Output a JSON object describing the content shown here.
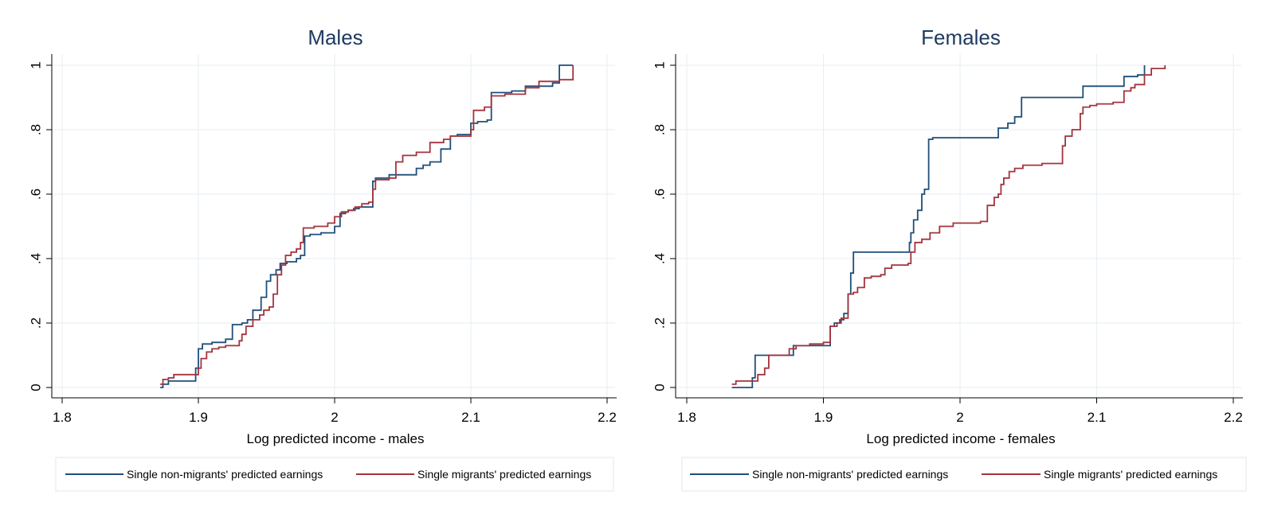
{
  "colors": {
    "non_migrant_line": "#1f4e79",
    "migrant_line": "#a3333d",
    "grid": "#e7eef0",
    "axis": "#000000",
    "title": "#1f3a60"
  },
  "chart_data": [
    {
      "type": "line",
      "title": "Males",
      "xlabel": "Log predicted income - males",
      "ylabel": "",
      "xlim": [
        1.8,
        2.2
      ],
      "ylim": [
        0,
        1
      ],
      "xticks": [
        "1.8",
        "1.9",
        "2",
        "2.1",
        "2.2"
      ],
      "yticks": [
        "0",
        ".2",
        ".4",
        ".6",
        ".8",
        "1"
      ],
      "grid": true,
      "legend_position": "bottom",
      "series": [
        {
          "name": "Single non-migrants' predicted earnings",
          "x": [
            1.872,
            1.874,
            1.878,
            1.894,
            1.898,
            1.9,
            1.903,
            1.91,
            1.92,
            1.925,
            1.932,
            1.936,
            1.94,
            1.946,
            1.95,
            1.953,
            1.957,
            1.96,
            1.965,
            1.97,
            1.972,
            1.975,
            1.978,
            1.982,
            1.99,
            2.0,
            2.004,
            2.008,
            2.01,
            2.014,
            2.018,
            2.028,
            2.03,
            2.04,
            2.05,
            2.06,
            2.065,
            2.07,
            2.078,
            2.085,
            2.09,
            2.1,
            2.105,
            2.112,
            2.115,
            2.13,
            2.14,
            2.16,
            2.165,
            2.175
          ],
          "y": [
            0.0,
            0.01,
            0.02,
            0.02,
            0.06,
            0.12,
            0.135,
            0.14,
            0.15,
            0.195,
            0.2,
            0.21,
            0.24,
            0.28,
            0.33,
            0.35,
            0.365,
            0.385,
            0.39,
            0.39,
            0.4,
            0.41,
            0.47,
            0.475,
            0.48,
            0.5,
            0.54,
            0.545,
            0.55,
            0.555,
            0.56,
            0.64,
            0.65,
            0.66,
            0.66,
            0.68,
            0.69,
            0.7,
            0.74,
            0.78,
            0.785,
            0.82,
            0.825,
            0.83,
            0.915,
            0.92,
            0.935,
            0.945,
            1.0,
            1.0
          ]
        },
        {
          "name": "Single migrants' predicted earnings",
          "x": [
            1.872,
            1.874,
            1.878,
            1.882,
            1.898,
            1.9,
            1.902,
            1.906,
            1.91,
            1.915,
            1.92,
            1.93,
            1.932,
            1.935,
            1.94,
            1.945,
            1.948,
            1.952,
            1.955,
            1.958,
            1.961,
            1.964,
            1.968,
            1.972,
            1.975,
            1.977,
            1.985,
            1.995,
            2.0,
            2.005,
            2.01,
            2.015,
            2.02,
            2.025,
            2.028,
            2.03,
            2.04,
            2.045,
            2.05,
            2.06,
            2.07,
            2.08,
            2.085,
            2.1,
            2.102,
            2.11,
            2.115,
            2.125,
            2.14,
            2.15,
            2.165,
            2.175
          ],
          "y": [
            0.01,
            0.025,
            0.03,
            0.04,
            0.04,
            0.06,
            0.09,
            0.11,
            0.12,
            0.125,
            0.13,
            0.145,
            0.165,
            0.19,
            0.21,
            0.225,
            0.24,
            0.25,
            0.29,
            0.35,
            0.38,
            0.41,
            0.42,
            0.43,
            0.45,
            0.495,
            0.5,
            0.51,
            0.53,
            0.545,
            0.55,
            0.56,
            0.57,
            0.575,
            0.615,
            0.645,
            0.65,
            0.7,
            0.72,
            0.73,
            0.76,
            0.77,
            0.78,
            0.8,
            0.86,
            0.87,
            0.905,
            0.91,
            0.93,
            0.95,
            0.955,
            1.0
          ]
        }
      ]
    },
    {
      "type": "line",
      "title": "Females",
      "xlabel": "Log predicted income - females",
      "ylabel": "",
      "xlim": [
        1.8,
        2.2
      ],
      "ylim": [
        0,
        1
      ],
      "xticks": [
        "1.8",
        "1.9",
        "2",
        "2.1",
        "2.2"
      ],
      "yticks": [
        "0",
        ".2",
        ".4",
        ".6",
        ".8",
        "1"
      ],
      "grid": true,
      "legend_position": "bottom",
      "series": [
        {
          "name": "Single non-migrants' predicted earnings",
          "x": [
            1.833,
            1.848,
            1.85,
            1.873,
            1.878,
            1.898,
            1.905,
            1.908,
            1.912,
            1.915,
            1.918,
            1.92,
            1.922,
            1.963,
            1.964,
            1.966,
            1.969,
            1.972,
            1.974,
            1.977,
            1.98,
            2.02,
            2.028,
            2.03,
            2.035,
            2.04,
            2.045,
            2.085,
            2.09,
            2.1,
            2.12,
            2.13,
            2.135
          ],
          "y": [
            0.0,
            0.03,
            0.1,
            0.1,
            0.13,
            0.13,
            0.19,
            0.2,
            0.21,
            0.23,
            0.29,
            0.355,
            0.42,
            0.45,
            0.48,
            0.52,
            0.55,
            0.6,
            0.615,
            0.77,
            0.775,
            0.775,
            0.805,
            0.805,
            0.82,
            0.84,
            0.9,
            0.9,
            0.935,
            0.935,
            0.965,
            0.97,
            1.0
          ]
        },
        {
          "name": "Single migrants' predicted earnings",
          "x": [
            1.833,
            1.836,
            1.848,
            1.852,
            1.857,
            1.86,
            1.868,
            1.875,
            1.88,
            1.89,
            1.9,
            1.905,
            1.91,
            1.913,
            1.918,
            1.922,
            1.925,
            1.93,
            1.935,
            1.942,
            1.945,
            1.95,
            1.962,
            1.964,
            1.967,
            1.972,
            1.978,
            1.985,
            1.995,
            2.015,
            2.02,
            2.025,
            2.028,
            2.03,
            2.032,
            2.036,
            2.04,
            2.046,
            2.055,
            2.06,
            2.07,
            2.075,
            2.077,
            2.082,
            2.085,
            2.088,
            2.09,
            2.095,
            2.1,
            2.112,
            2.12,
            2.125,
            2.128,
            2.135,
            2.14,
            2.15
          ],
          "y": [
            0.01,
            0.02,
            0.02,
            0.04,
            0.06,
            0.1,
            0.1,
            0.12,
            0.13,
            0.135,
            0.14,
            0.19,
            0.2,
            0.215,
            0.29,
            0.295,
            0.31,
            0.34,
            0.345,
            0.35,
            0.37,
            0.38,
            0.385,
            0.42,
            0.45,
            0.46,
            0.48,
            0.5,
            0.51,
            0.515,
            0.565,
            0.59,
            0.6,
            0.63,
            0.65,
            0.67,
            0.68,
            0.69,
            0.69,
            0.695,
            0.695,
            0.75,
            0.78,
            0.8,
            0.8,
            0.85,
            0.87,
            0.875,
            0.88,
            0.885,
            0.92,
            0.93,
            0.94,
            0.97,
            0.99,
            1.0
          ]
        }
      ]
    }
  ]
}
